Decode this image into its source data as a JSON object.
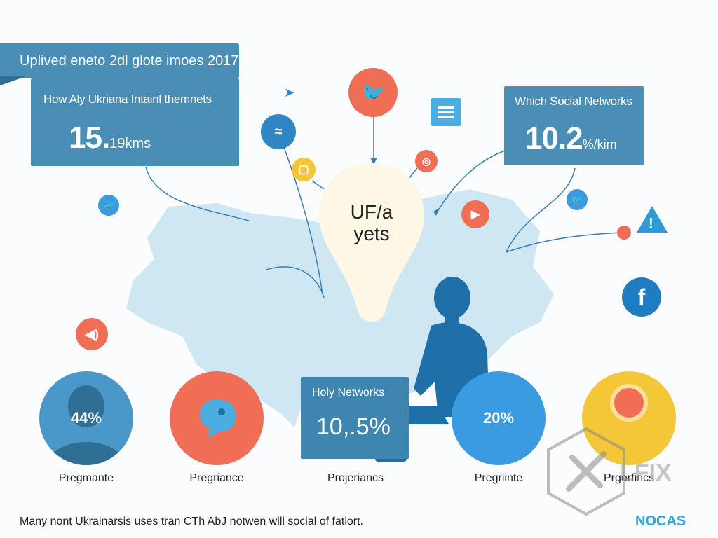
{
  "header_banner": "Uplived eneto 2dl glote imoes 2017",
  "left_card": {
    "title": "How Aly Ukriana Intainl themnets",
    "value": "15.",
    "value_suffix": "19kms"
  },
  "right_card": {
    "title": "Which Social Networks",
    "value": "10.2",
    "value_suffix": "%/kim"
  },
  "center_bulb": {
    "line1": "UF/a",
    "line2": "yets"
  },
  "center_card": {
    "title": "Holy Networks",
    "value": "10,.5%"
  },
  "bubbles": [
    {
      "value": "44%",
      "caption": "Pregmante",
      "color": "#4a98c9"
    },
    {
      "value": "",
      "caption": "Pregriance",
      "color": "#f06d56"
    },
    {
      "value": "20%",
      "caption": "Pregriinte",
      "color": "#3b9be0"
    },
    {
      "value": "",
      "caption": "Prgorfincs",
      "color": "#f3c737"
    }
  ],
  "center_caption": "Projeriancs",
  "footer_text": "Many nont Ukrainarsis uses tran CTh AbJ notwen will social of fatiort.",
  "brand_logo": "NOCAS",
  "watermark_text": "LFIX",
  "colors": {
    "card": "#4a8db5",
    "map": "#cfe7f3",
    "orange": "#f06d56",
    "blue": "#2f86c4",
    "yellow": "#f3c737"
  },
  "icons": [
    "twitter-icon",
    "bird-icon",
    "chat-icon",
    "instagram-icon",
    "play-icon",
    "warning-icon",
    "facebook-icon",
    "speaker-icon",
    "send-icon",
    "message-icon"
  ]
}
